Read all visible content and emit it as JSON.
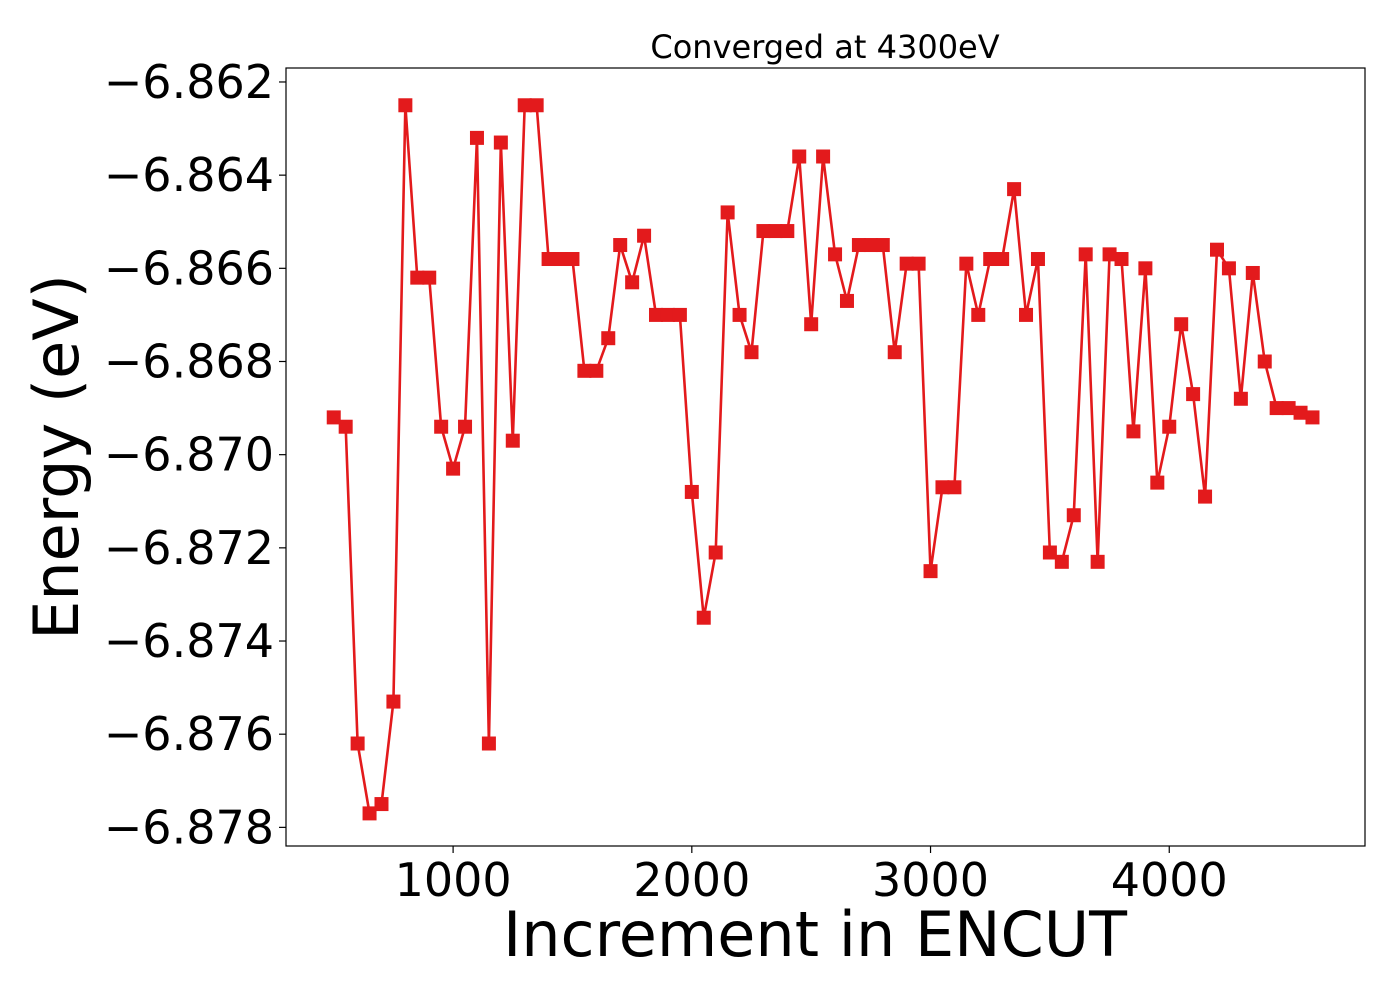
{
  "chart_data": {
    "type": "line",
    "title": "Converged at 4300eV",
    "xlabel": "Increment in ENCUT",
    "ylabel": "Energy (eV)",
    "xlim": [
      300,
      4820
    ],
    "ylim": [
      -6.8784,
      -6.8617
    ],
    "x_ticks": [
      1000,
      2000,
      3000,
      4000
    ],
    "y_ticks": [
      -6.862,
      -6.864,
      -6.866,
      -6.868,
      -6.87,
      -6.872,
      -6.874,
      -6.876,
      -6.878
    ],
    "x_tick_labels": [
      "1000",
      "2000",
      "3000",
      "4000"
    ],
    "y_tick_labels": [
      "−6.862",
      "−6.864",
      "−6.866",
      "−6.868",
      "−6.870",
      "−6.872",
      "−6.874",
      "−6.876",
      "−6.878"
    ],
    "grid": false,
    "color": "#e31a1c",
    "marker": "square",
    "series": [
      {
        "x": [
          500,
          550,
          600,
          650,
          700,
          750,
          800,
          850,
          900,
          950,
          1000,
          1050,
          1100,
          1150,
          1200,
          1250,
          1300,
          1350,
          1400,
          1450,
          1500,
          1550,
          1600,
          1650,
          1700,
          1750,
          1800,
          1850,
          1900,
          1950,
          2000,
          2050,
          2100,
          2150,
          2200,
          2250,
          2300,
          2350,
          2400,
          2450,
          2500,
          2550,
          2600,
          2650,
          2700,
          2750,
          2800,
          2850,
          2900,
          2950,
          3000,
          3050,
          3100,
          3150,
          3200,
          3250,
          3300,
          3350,
          3400,
          3450,
          3500,
          3550,
          3600,
          3650,
          3700,
          3750,
          3800,
          3850,
          3900,
          3950,
          4000,
          4050,
          4100,
          4150,
          4200,
          4250,
          4300,
          4350,
          4400,
          4450,
          4500,
          4550,
          4600
        ],
        "y": [
          -6.8692,
          -6.8694,
          -6.8762,
          -6.8777,
          -6.8775,
          -6.8753,
          -6.8625,
          -6.8662,
          -6.8662,
          -6.8694,
          -6.8703,
          -6.8694,
          -6.8632,
          -6.8762,
          -6.8633,
          -6.8697,
          -6.8625,
          -6.8625,
          -6.8658,
          -6.8658,
          -6.8658,
          -6.8682,
          -6.8682,
          -6.8675,
          -6.8655,
          -6.8663,
          -6.8653,
          -6.867,
          -6.867,
          -6.867,
          -6.8708,
          -6.8735,
          -6.8721,
          -6.8648,
          -6.867,
          -6.8678,
          -6.8652,
          -6.8652,
          -6.8652,
          -6.8636,
          -6.8672,
          -6.8636,
          -6.8657,
          -6.8667,
          -6.8655,
          -6.8655,
          -6.8655,
          -6.8678,
          -6.8659,
          -6.8659,
          -6.8725,
          -6.8707,
          -6.8707,
          -6.8659,
          -6.867,
          -6.8658,
          -6.8658,
          -6.8643,
          -6.867,
          -6.8658,
          -6.8721,
          -6.8723,
          -6.8713,
          -6.8657,
          -6.8723,
          -6.8657,
          -6.8658,
          -6.8695,
          -6.866,
          -6.8706,
          -6.8694,
          -6.8672,
          -6.8687,
          -6.8709,
          -6.8656,
          -6.866,
          -6.8688,
          -6.8661,
          -6.868,
          -6.869,
          -6.869,
          -6.8691,
          -6.8692
        ]
      }
    ]
  }
}
